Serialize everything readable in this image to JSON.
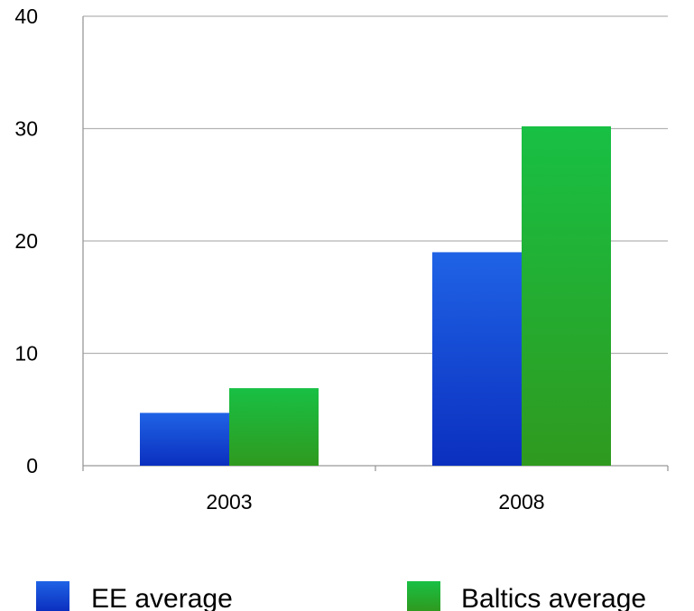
{
  "chart_data": {
    "type": "bar",
    "categories": [
      "2003",
      "2008"
    ],
    "series": [
      {
        "name": "EE average",
        "values": [
          4.7,
          19.0
        ]
      },
      {
        "name": "Baltics average",
        "values": [
          6.9,
          30.2
        ]
      }
    ],
    "title": "",
    "xlabel": "",
    "ylabel": "",
    "ylim": [
      0,
      40
    ],
    "yticks": [
      "0",
      "10",
      "20",
      "30",
      "40"
    ],
    "grid": true,
    "legend_position": "bottom"
  },
  "colors": {
    "ee_average_top": "#1f63e6",
    "ee_average_bottom": "#0b2fbf",
    "baltics_average_top": "#18c044",
    "baltics_average_bottom": "#2f9a1f",
    "gridline": "#b3b3b3",
    "axis": "#999999"
  }
}
